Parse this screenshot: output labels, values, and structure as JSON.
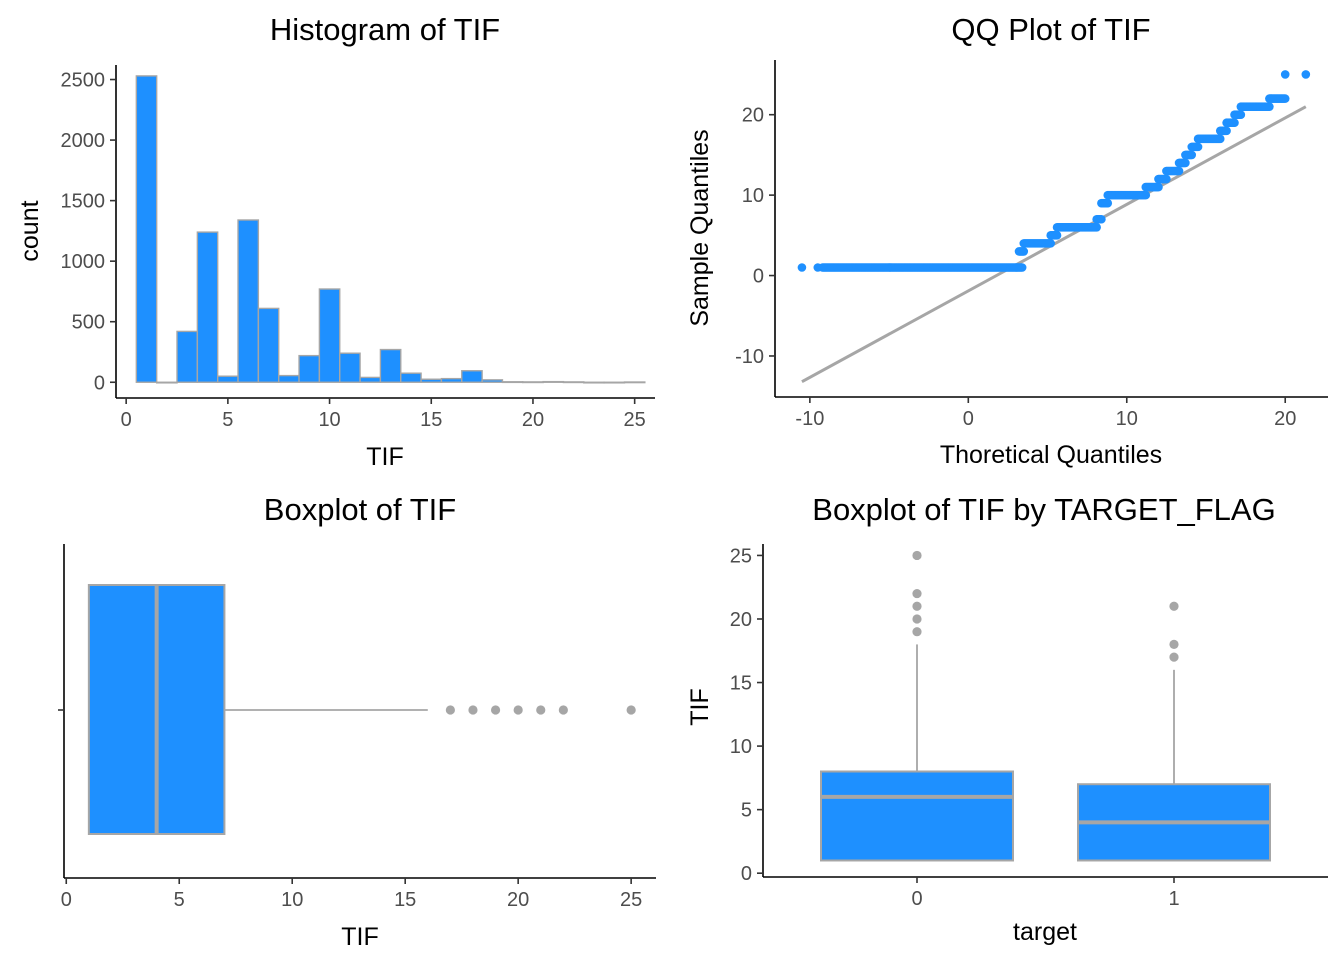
{
  "colors": {
    "fill": "#1E90FF",
    "outline": "#A6A6A6",
    "ref_line": "#A6A6A6",
    "outlier": "#A6A6A6"
  },
  "chart_data": [
    {
      "type": "bar",
      "title": "Histogram of TIF",
      "xlabel": "TIF",
      "ylabel": "count",
      "xlim": [
        -0.5,
        26.0
      ],
      "ylim": [
        -130,
        2620
      ],
      "xticks": [
        0,
        5,
        10,
        15,
        20,
        25
      ],
      "yticks": [
        0,
        500,
        1000,
        1500,
        2000,
        2500
      ],
      "bin_width": 1,
      "bins": [
        {
          "x": 1,
          "count": 2530
        },
        {
          "x": 2,
          "count": 0
        },
        {
          "x": 3,
          "count": 420
        },
        {
          "x": 4,
          "count": 1240
        },
        {
          "x": 5,
          "count": 50
        },
        {
          "x": 6,
          "count": 1340
        },
        {
          "x": 7,
          "count": 610
        },
        {
          "x": 8,
          "count": 55
        },
        {
          "x": 9,
          "count": 220
        },
        {
          "x": 10,
          "count": 770
        },
        {
          "x": 11,
          "count": 240
        },
        {
          "x": 12,
          "count": 40
        },
        {
          "x": 13,
          "count": 270
        },
        {
          "x": 14,
          "count": 75
        },
        {
          "x": 15,
          "count": 25
        },
        {
          "x": 16,
          "count": 30
        },
        {
          "x": 17,
          "count": 95
        },
        {
          "x": 18,
          "count": 20
        },
        {
          "x": 19,
          "count": 4
        },
        {
          "x": 20,
          "count": 3
        },
        {
          "x": 21,
          "count": 5
        },
        {
          "x": 22,
          "count": 3
        },
        {
          "x": 23,
          "count": 0
        },
        {
          "x": 24,
          "count": 0
        },
        {
          "x": 25,
          "count": 2
        }
      ]
    },
    {
      "type": "scatter",
      "title": "QQ Plot of TIF",
      "xlabel": "Thoretical Quantiles",
      "ylabel": "Sample Quantiles",
      "xlim": [
        -12.2,
        22.7
      ],
      "ylim": [
        -15.1,
        26.8
      ],
      "xticks": [
        -10,
        0,
        10,
        20
      ],
      "yticks": [
        -10,
        0,
        10,
        20
      ],
      "reference_line": {
        "x": [
          -10.5,
          21.3
        ],
        "y": [
          -13.2,
          21.0
        ]
      },
      "points": [
        {
          "x": [
            -10.5,
            -9.5
          ],
          "y": 1
        },
        {
          "x_range": [
            -9.2,
            3.4
          ],
          "y": 1
        },
        {
          "x_range": [
            3.2,
            3.5
          ],
          "y": 3
        },
        {
          "x_range": [
            3.5,
            5.2
          ],
          "y": 4
        },
        {
          "x_range": [
            5.2,
            5.6
          ],
          "y": 5
        },
        {
          "x_range": [
            5.6,
            8.1
          ],
          "y": 6
        },
        {
          "x_range": [
            8.1,
            8.4
          ],
          "y": 7
        },
        {
          "x_range": [
            8.4,
            8.8
          ],
          "y": 9
        },
        {
          "x_range": [
            8.8,
            11.2
          ],
          "y": 10
        },
        {
          "x_range": [
            11.2,
            12.0
          ],
          "y": 11
        },
        {
          "x_range": [
            12.0,
            12.5
          ],
          "y": 12
        },
        {
          "x_range": [
            12.5,
            13.3
          ],
          "y": 13
        },
        {
          "x_range": [
            13.3,
            13.7
          ],
          "y": 14
        },
        {
          "x_range": [
            13.7,
            14.1
          ],
          "y": 15
        },
        {
          "x_range": [
            14.1,
            14.5
          ],
          "y": 16
        },
        {
          "x_range": [
            14.5,
            15.9
          ],
          "y": 17
        },
        {
          "x_range": [
            15.9,
            16.3
          ],
          "y": 18
        },
        {
          "x_range": [
            16.3,
            16.8
          ],
          "y": 19
        },
        {
          "x_range": [
            16.8,
            17.2
          ],
          "y": 20
        },
        {
          "x_range": [
            17.2,
            19.0
          ],
          "y": 21
        },
        {
          "x_range": [
            19.0,
            20.0
          ],
          "y": 22
        },
        {
          "x": [
            20.0,
            21.3
          ],
          "y": 25
        }
      ]
    },
    {
      "type": "boxplot",
      "title": "Boxplot of TIF",
      "xlabel": "TIF",
      "ylabel": "",
      "xlim": [
        -0.1,
        26.1
      ],
      "xticks": [
        0,
        5,
        10,
        15,
        20,
        25
      ],
      "box": {
        "q1": 1,
        "median": 4,
        "q3": 7,
        "whisker_low": 1,
        "whisker_high": 16
      },
      "outliers": [
        17,
        18,
        19,
        20,
        21,
        22,
        25
      ]
    },
    {
      "type": "boxplot",
      "title": "Boxplot of TIF by TARGET_FLAG",
      "xlabel": "target",
      "ylabel": "TIF",
      "categories": [
        "0",
        "1"
      ],
      "ylim": [
        -0.3,
        25.9
      ],
      "yticks": [
        0,
        5,
        10,
        15,
        20,
        25
      ],
      "boxes": [
        {
          "category": "0",
          "q1": 1,
          "median": 6,
          "q3": 8,
          "whisker_low": 1,
          "whisker_high": 18,
          "outliers": [
            19,
            20,
            21,
            22,
            25
          ]
        },
        {
          "category": "1",
          "q1": 1,
          "median": 4,
          "q3": 7,
          "whisker_low": 1,
          "whisker_high": 16,
          "outliers": [
            17,
            18,
            21
          ]
        }
      ]
    }
  ]
}
